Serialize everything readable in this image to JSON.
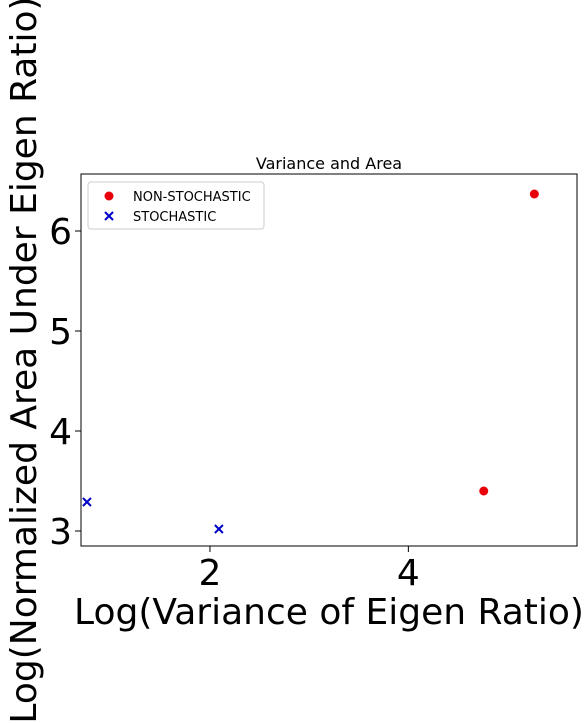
{
  "chart_data": {
    "type": "scatter",
    "title": "Variance and  Area",
    "xlabel": "Log(Variance of Eigen Ratio)",
    "ylabel": "Log(Normalized Area Under Eigen Ratio)",
    "xlim": [
      0.7,
      5.7
    ],
    "ylim": [
      2.85,
      6.57
    ],
    "x_ticks": [
      2,
      4
    ],
    "y_ticks": [
      3,
      4,
      5,
      6
    ],
    "grid": false,
    "legend_position": "upper-left",
    "series": [
      {
        "name": "NON-STOCHASTIC",
        "marker": "circle",
        "color": "#e8000b",
        "points": [
          {
            "x": 4.76,
            "y": 3.4
          },
          {
            "x": 5.27,
            "y": 6.37
          }
        ]
      },
      {
        "name": "STOCHASTIC",
        "marker": "x",
        "color": "#0000c8",
        "points": [
          {
            "x": 0.76,
            "y": 3.29
          },
          {
            "x": 2.09,
            "y": 3.02
          }
        ]
      }
    ]
  }
}
